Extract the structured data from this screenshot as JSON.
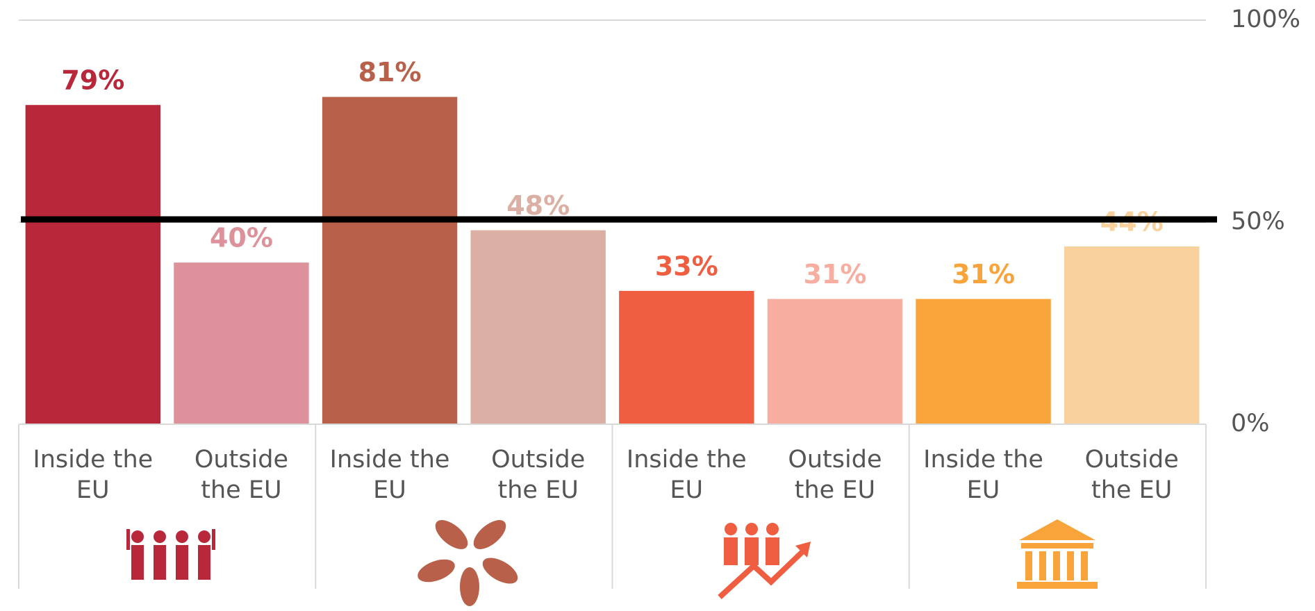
{
  "chart_data": {
    "type": "bar",
    "categories": [
      "Inside the EU",
      "Outside the EU",
      "Inside the EU",
      "Outside the EU",
      "Inside the EU",
      "Outside the EU",
      "Inside the EU",
      "Outside the EU"
    ],
    "values": [
      79,
      40,
      81,
      48,
      33,
      31,
      31,
      44
    ],
    "value_labels": [
      "79%",
      "40%",
      "81%",
      "48%",
      "33%",
      "31%",
      "31%",
      "44%"
    ],
    "colors": [
      "#b8283a",
      "#dc919b",
      "#b9604a",
      "#dcafa4",
      "#ef5e41",
      "#f7ada0",
      "#f9a43a",
      "#f9d19c"
    ],
    "ylim": [
      0,
      100
    ],
    "yticks": [
      {
        "value": 0,
        "label": "0%"
      },
      {
        "value": 50,
        "label": "50%"
      },
      {
        "value": 100,
        "label": "100%"
      }
    ],
    "reference_line": 50,
    "grid": true
  }
}
